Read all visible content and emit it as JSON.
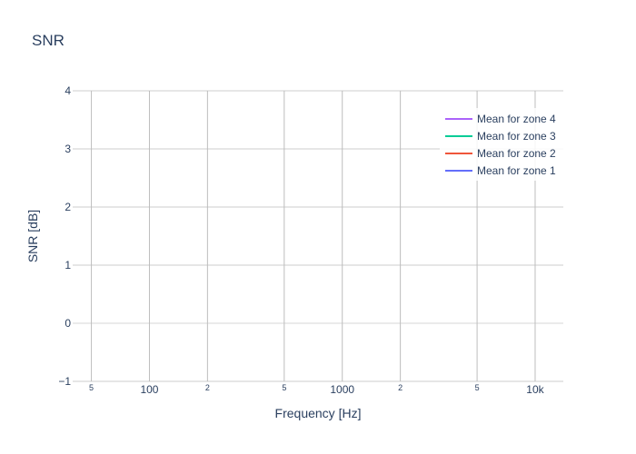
{
  "chart_data": {
    "type": "line",
    "title": "SNR",
    "xlabel": "Frequency [Hz]",
    "ylabel": "SNR [dB]",
    "x_scale": "log",
    "xlim": [
      40,
      14000
    ],
    "ylim": [
      -1,
      4
    ],
    "x_major_ticks": [
      {
        "value": 100,
        "label": "100"
      },
      {
        "value": 1000,
        "label": "1000"
      },
      {
        "value": 10000,
        "label": "10k"
      }
    ],
    "x_minor_ticks": [
      {
        "value": 50,
        "label": "5"
      },
      {
        "value": 200,
        "label": "2"
      },
      {
        "value": 500,
        "label": "5"
      },
      {
        "value": 2000,
        "label": "2"
      },
      {
        "value": 5000,
        "label": "5"
      }
    ],
    "y_ticks": [
      {
        "value": -1,
        "label": "−1"
      },
      {
        "value": 0,
        "label": "0"
      },
      {
        "value": 1,
        "label": "1"
      },
      {
        "value": 2,
        "label": "2"
      },
      {
        "value": 3,
        "label": "3"
      },
      {
        "value": 4,
        "label": "4"
      }
    ],
    "grid": true,
    "legend_position": "top-right",
    "series": [
      {
        "name": "Mean for zone 4",
        "color": "#ab63fa",
        "x": [],
        "y": []
      },
      {
        "name": "Mean for zone 3",
        "color": "#00cc96",
        "x": [],
        "y": []
      },
      {
        "name": "Mean for zone 2",
        "color": "#ef553b",
        "x": [],
        "y": []
      },
      {
        "name": "Mean for zone 1",
        "color": "#636efa",
        "x": [],
        "y": []
      }
    ]
  }
}
